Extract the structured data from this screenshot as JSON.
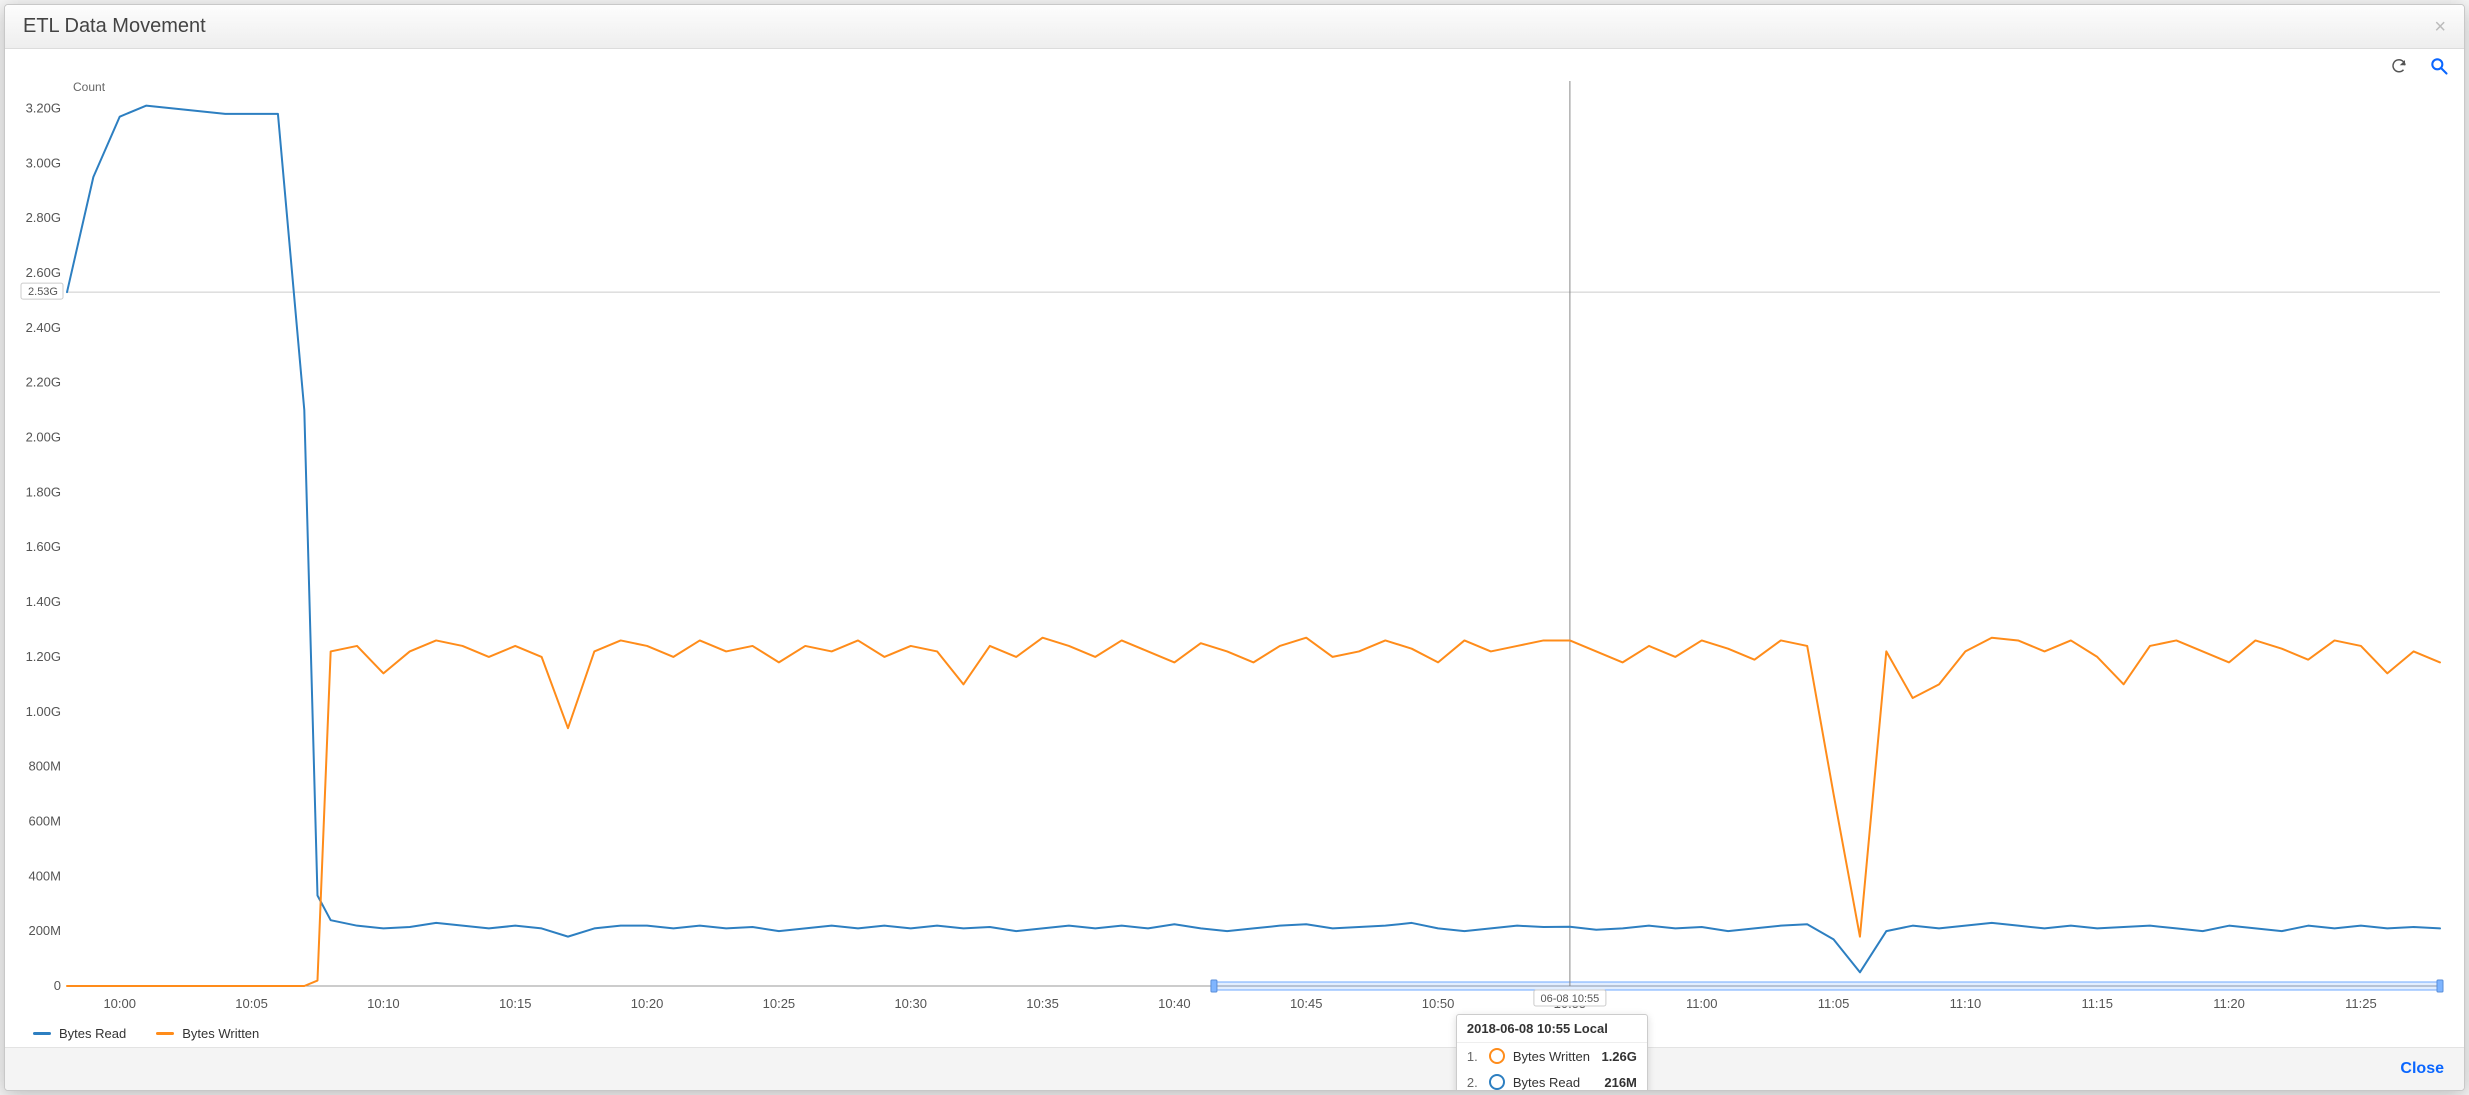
{
  "window": {
    "title": "ETL Data Movement",
    "close_label": "Close"
  },
  "toolbar": {
    "refresh_tooltip": "Refresh",
    "zoom_tooltip": "Zoom"
  },
  "chart": {
    "type": "line",
    "y_axis_title": "Count",
    "x_label_fontsize": 13,
    "y_label_fontsize": 13,
    "background_color": "#ffffff",
    "grid_color": "#eeeeee",
    "axis_color": "#999999",
    "y": {
      "min_g": 0,
      "max_g": 3.3,
      "ticks": [
        {
          "v_g": 0.0,
          "label": "0"
        },
        {
          "v_g": 0.2,
          "label": "200M"
        },
        {
          "v_g": 0.4,
          "label": "400M"
        },
        {
          "v_g": 0.6,
          "label": "600M"
        },
        {
          "v_g": 0.8,
          "label": "800M"
        },
        {
          "v_g": 1.0,
          "label": "1.00G"
        },
        {
          "v_g": 1.2,
          "label": "1.20G"
        },
        {
          "v_g": 1.4,
          "label": "1.40G"
        },
        {
          "v_g": 1.6,
          "label": "1.60G"
        },
        {
          "v_g": 1.8,
          "label": "1.80G"
        },
        {
          "v_g": 2.0,
          "label": "2.00G"
        },
        {
          "v_g": 2.2,
          "label": "2.20G"
        },
        {
          "v_g": 2.4,
          "label": "2.40G"
        },
        {
          "v_g": 2.6,
          "label": "2.60G"
        },
        {
          "v_g": 2.8,
          "label": "2.80G"
        },
        {
          "v_g": 3.0,
          "label": "3.00G"
        },
        {
          "v_g": 3.2,
          "label": "3.20G"
        }
      ],
      "reference": {
        "v_g": 2.53,
        "label": "2.53G"
      }
    },
    "x": {
      "min_min": 598,
      "max_min": 688,
      "ticks": [
        {
          "m": 600,
          "label": "10:00"
        },
        {
          "m": 605,
          "label": "10:05"
        },
        {
          "m": 610,
          "label": "10:10"
        },
        {
          "m": 615,
          "label": "10:15"
        },
        {
          "m": 620,
          "label": "10:20"
        },
        {
          "m": 625,
          "label": "10:25"
        },
        {
          "m": 630,
          "label": "10:30"
        },
        {
          "m": 635,
          "label": "10:35"
        },
        {
          "m": 640,
          "label": "10:40"
        },
        {
          "m": 645,
          "label": "10:45"
        },
        {
          "m": 650,
          "label": "10:50"
        },
        {
          "m": 655,
          "label": "10:55"
        },
        {
          "m": 660,
          "label": "11:00"
        },
        {
          "m": 665,
          "label": "11:05"
        },
        {
          "m": 670,
          "label": "11:10"
        },
        {
          "m": 675,
          "label": "11:15"
        },
        {
          "m": 680,
          "label": "11:20"
        },
        {
          "m": 685,
          "label": "11:25"
        }
      ],
      "hover_marker": {
        "m": 655,
        "label": "06-08 10:55"
      },
      "brush": {
        "start_m": 641.5,
        "end_m": 688
      }
    },
    "series": [
      {
        "id": "bytes_read",
        "label": "Bytes Read",
        "color": "#2d7fc1",
        "line_width": 2,
        "points_g": [
          [
            598,
            2.53
          ],
          [
            599,
            2.95
          ],
          [
            600,
            3.17
          ],
          [
            601,
            3.21
          ],
          [
            602,
            3.2
          ],
          [
            603,
            3.19
          ],
          [
            604,
            3.18
          ],
          [
            605,
            3.18
          ],
          [
            606,
            3.18
          ],
          [
            607,
            2.1
          ],
          [
            607.5,
            0.33
          ],
          [
            608,
            0.24
          ],
          [
            609,
            0.22
          ],
          [
            610,
            0.21
          ],
          [
            611,
            0.215
          ],
          [
            612,
            0.23
          ],
          [
            613,
            0.22
          ],
          [
            614,
            0.21
          ],
          [
            615,
            0.22
          ],
          [
            616,
            0.21
          ],
          [
            617,
            0.18
          ],
          [
            618,
            0.21
          ],
          [
            619,
            0.22
          ],
          [
            620,
            0.22
          ],
          [
            621,
            0.21
          ],
          [
            622,
            0.22
          ],
          [
            623,
            0.21
          ],
          [
            624,
            0.215
          ],
          [
            625,
            0.2
          ],
          [
            626,
            0.21
          ],
          [
            627,
            0.22
          ],
          [
            628,
            0.21
          ],
          [
            629,
            0.22
          ],
          [
            630,
            0.21
          ],
          [
            631,
            0.22
          ],
          [
            632,
            0.21
          ],
          [
            633,
            0.215
          ],
          [
            634,
            0.2
          ],
          [
            635,
            0.21
          ],
          [
            636,
            0.22
          ],
          [
            637,
            0.21
          ],
          [
            638,
            0.22
          ],
          [
            639,
            0.21
          ],
          [
            640,
            0.225
          ],
          [
            641,
            0.21
          ],
          [
            642,
            0.2
          ],
          [
            643,
            0.21
          ],
          [
            644,
            0.22
          ],
          [
            645,
            0.225
          ],
          [
            646,
            0.21
          ],
          [
            647,
            0.215
          ],
          [
            648,
            0.22
          ],
          [
            649,
            0.23
          ],
          [
            650,
            0.21
          ],
          [
            651,
            0.2
          ],
          [
            652,
            0.21
          ],
          [
            653,
            0.22
          ],
          [
            654,
            0.215
          ],
          [
            655,
            0.216
          ],
          [
            656,
            0.205
          ],
          [
            657,
            0.21
          ],
          [
            658,
            0.22
          ],
          [
            659,
            0.21
          ],
          [
            660,
            0.215
          ],
          [
            661,
            0.2
          ],
          [
            662,
            0.21
          ],
          [
            663,
            0.22
          ],
          [
            664,
            0.225
          ],
          [
            665,
            0.17
          ],
          [
            666,
            0.05
          ],
          [
            667,
            0.2
          ],
          [
            668,
            0.22
          ],
          [
            669,
            0.21
          ],
          [
            670,
            0.22
          ],
          [
            671,
            0.23
          ],
          [
            672,
            0.22
          ],
          [
            673,
            0.21
          ],
          [
            674,
            0.22
          ],
          [
            675,
            0.21
          ],
          [
            676,
            0.215
          ],
          [
            677,
            0.22
          ],
          [
            678,
            0.21
          ],
          [
            679,
            0.2
          ],
          [
            680,
            0.22
          ],
          [
            681,
            0.21
          ],
          [
            682,
            0.2
          ],
          [
            683,
            0.22
          ],
          [
            684,
            0.21
          ],
          [
            685,
            0.22
          ],
          [
            686,
            0.21
          ],
          [
            687,
            0.215
          ],
          [
            688,
            0.21
          ]
        ]
      },
      {
        "id": "bytes_written",
        "label": "Bytes Written",
        "color": "#ff8c1a",
        "line_width": 2,
        "points_g": [
          [
            598,
            0.0
          ],
          [
            607,
            0.0
          ],
          [
            607.5,
            0.02
          ],
          [
            608,
            1.22
          ],
          [
            609,
            1.24
          ],
          [
            610,
            1.14
          ],
          [
            611,
            1.22
          ],
          [
            612,
            1.26
          ],
          [
            613,
            1.24
          ],
          [
            614,
            1.2
          ],
          [
            615,
            1.24
          ],
          [
            616,
            1.2
          ],
          [
            617,
            0.94
          ],
          [
            618,
            1.22
          ],
          [
            619,
            1.26
          ],
          [
            620,
            1.24
          ],
          [
            621,
            1.2
          ],
          [
            622,
            1.26
          ],
          [
            623,
            1.22
          ],
          [
            624,
            1.24
          ],
          [
            625,
            1.18
          ],
          [
            626,
            1.24
          ],
          [
            627,
            1.22
          ],
          [
            628,
            1.26
          ],
          [
            629,
            1.2
          ],
          [
            630,
            1.24
          ],
          [
            631,
            1.22
          ],
          [
            632,
            1.1
          ],
          [
            633,
            1.24
          ],
          [
            634,
            1.2
          ],
          [
            635,
            1.27
          ],
          [
            636,
            1.24
          ],
          [
            637,
            1.2
          ],
          [
            638,
            1.26
          ],
          [
            639,
            1.22
          ],
          [
            640,
            1.18
          ],
          [
            641,
            1.25
          ],
          [
            642,
            1.22
          ],
          [
            643,
            1.18
          ],
          [
            644,
            1.24
          ],
          [
            645,
            1.27
          ],
          [
            646,
            1.2
          ],
          [
            647,
            1.22
          ],
          [
            648,
            1.26
          ],
          [
            649,
            1.23
          ],
          [
            650,
            1.18
          ],
          [
            651,
            1.26
          ],
          [
            652,
            1.22
          ],
          [
            653,
            1.24
          ],
          [
            654,
            1.26
          ],
          [
            655,
            1.26
          ],
          [
            656,
            1.22
          ],
          [
            657,
            1.18
          ],
          [
            658,
            1.24
          ],
          [
            659,
            1.2
          ],
          [
            660,
            1.26
          ],
          [
            661,
            1.23
          ],
          [
            662,
            1.19
          ],
          [
            663,
            1.26
          ],
          [
            664,
            1.24
          ],
          [
            665,
            0.7
          ],
          [
            666,
            0.18
          ],
          [
            667,
            1.22
          ],
          [
            668,
            1.05
          ],
          [
            669,
            1.1
          ],
          [
            670,
            1.22
          ],
          [
            671,
            1.27
          ],
          [
            672,
            1.26
          ],
          [
            673,
            1.22
          ],
          [
            674,
            1.26
          ],
          [
            675,
            1.2
          ],
          [
            676,
            1.1
          ],
          [
            677,
            1.24
          ],
          [
            678,
            1.26
          ],
          [
            679,
            1.22
          ],
          [
            680,
            1.18
          ],
          [
            681,
            1.26
          ],
          [
            682,
            1.23
          ],
          [
            683,
            1.19
          ],
          [
            684,
            1.26
          ],
          [
            685,
            1.24
          ],
          [
            686,
            1.14
          ],
          [
            687,
            1.22
          ],
          [
            688,
            1.18
          ]
        ]
      }
    ],
    "hover": {
      "at_m": 655,
      "title": "2018-06-08 10:55 Local",
      "rows": [
        {
          "idx": "1.",
          "series_id": "bytes_written",
          "name": "Bytes Written",
          "value": "1.26G"
        },
        {
          "idx": "2.",
          "series_id": "bytes_read",
          "name": "Bytes Read",
          "value": "216M"
        }
      ]
    }
  },
  "legend": {
    "items": [
      {
        "series_id": "bytes_read",
        "label": "Bytes Read"
      },
      {
        "series_id": "bytes_written",
        "label": "Bytes Written"
      }
    ]
  },
  "colors": {
    "refresh_icon": "#555555",
    "zoom_icon": "#0a66ff",
    "close_link": "#0a66ff"
  }
}
